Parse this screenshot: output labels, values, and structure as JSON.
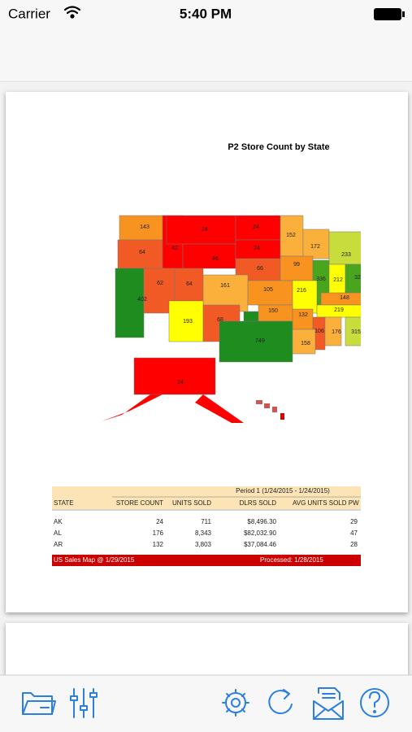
{
  "status_bar": {
    "carrier": "Carrier",
    "time": "5:40 PM"
  },
  "document": {
    "title": "P2 Store Count by State",
    "map_labels": [
      143,
      64,
      42,
      24,
      46,
      24,
      24,
      66,
      152,
      172,
      233,
      99,
      336,
      212,
      32,
      402,
      62,
      64,
      161,
      105,
      216,
      148,
      193,
      68,
      150,
      749,
      132,
      219,
      106,
      176,
      315,
      158,
      24
    ],
    "table": {
      "period": "Period 1 (1/24/2015 - 1/24/2015)",
      "columns": [
        "STATE",
        "STORE COUNT",
        "UNITS SOLD",
        "DLRS SOLD",
        "AVG UNITS SOLD PW"
      ],
      "rows": [
        [
          "AK",
          "24",
          "711",
          "$8,496.30",
          "29"
        ],
        [
          "AL",
          "176",
          "8,343",
          "$82,032.90",
          "47"
        ],
        [
          "AR",
          "132",
          "3,803",
          "$37,084.46",
          "28"
        ]
      ]
    },
    "footer": {
      "left": "US Sales Map @ 1/29/2015",
      "right": "Processed: 1/28/2015"
    }
  }
}
